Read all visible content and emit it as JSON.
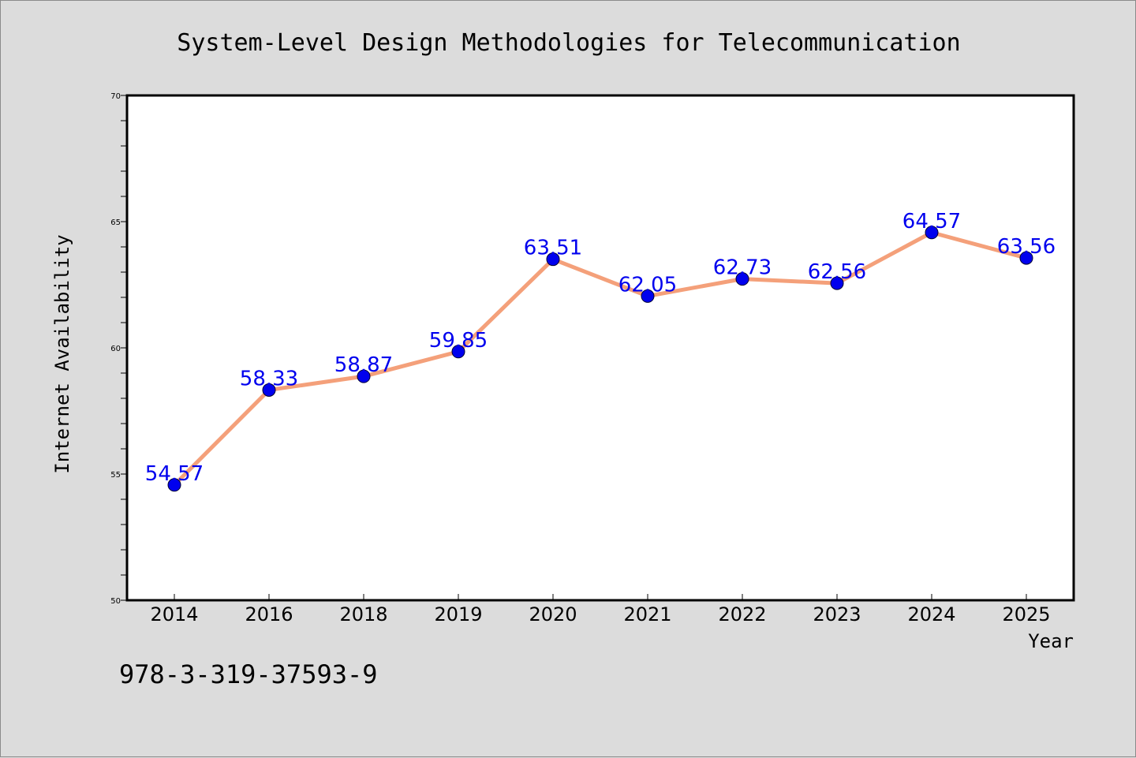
{
  "chart_data": {
    "type": "line",
    "title": "System-Level Design Methodologies for Telecommunication",
    "xlabel": "Year",
    "ylabel": "Internet Availability",
    "categories": [
      "2014",
      "2016",
      "2018",
      "2019",
      "2020",
      "2021",
      "2022",
      "2023",
      "2024",
      "2025"
    ],
    "series": [
      {
        "values": [
          54.57,
          58.33,
          58.87,
          59.85,
          63.51,
          62.05,
          62.73,
          62.56,
          64.57,
          63.56
        ],
        "value_labels": [
          "54.57",
          "58.33",
          "58.87",
          "59.85",
          "63.51",
          "62.05",
          "62.73",
          "62.56",
          "64.57",
          "63.56"
        ]
      }
    ],
    "ylim": [
      50,
      70
    ],
    "yticks": [
      "50",
      "55",
      "60",
      "65",
      "70"
    ],
    "grid": false,
    "legend": "none",
    "colors": {
      "background": "#dcdcdc",
      "plot_area": "#ffffff",
      "line": "#f4a07a",
      "marker": "#0000ee",
      "data_label": "#0000ee",
      "text": "#000000"
    }
  },
  "footer": {
    "note": "978-3-319-37593-9"
  }
}
